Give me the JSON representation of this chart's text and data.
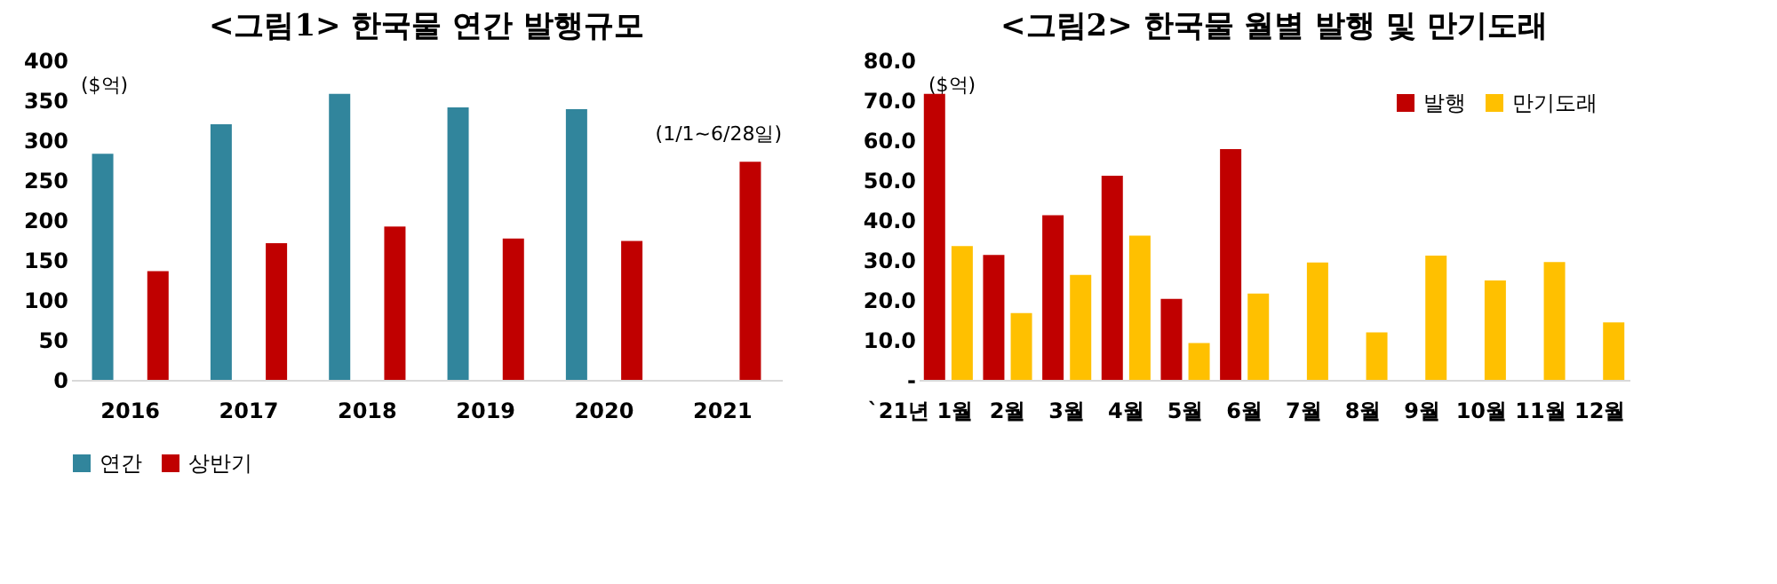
{
  "chart_data": [
    {
      "type": "bar",
      "title": "<그림1> 한국물 연간 발행규모",
      "ylabel": "($억)",
      "categories": [
        "2016",
        "2017",
        "2018",
        "2019",
        "2020",
        "2021"
      ],
      "series": [
        {
          "name": "연간",
          "color": "#31859c",
          "values": [
            283,
            320,
            358,
            341,
            339,
            null
          ]
        },
        {
          "name": "상반기",
          "color": "#c00000",
          "values": [
            136,
            171,
            192,
            177,
            174,
            273
          ]
        }
      ],
      "ylim": [
        0,
        400
      ],
      "yticks": [
        0,
        50,
        100,
        150,
        200,
        250,
        300,
        350,
        400
      ],
      "legend": "bottom",
      "annotations": [
        "(1/1~6/28일)"
      ]
    },
    {
      "type": "bar",
      "title": "<그림2>  한국물 월별 발행 및 만기도래",
      "ylabel": "($억)",
      "categories": [
        "`21년 1월",
        "2월",
        "3월",
        "4월",
        "5월",
        "6월",
        "7월",
        "8월",
        "9월",
        "10월",
        "11월",
        "12월"
      ],
      "series": [
        {
          "name": "발행",
          "color": "#c00000",
          "values": [
            71.6,
            31.3,
            41.2,
            51.1,
            20.3,
            57.8,
            null,
            null,
            null,
            null,
            null,
            null
          ]
        },
        {
          "name": "만기도래",
          "color": "#ffc000",
          "values": [
            33.5,
            16.7,
            26.3,
            36.1,
            9.2,
            21.6,
            29.4,
            11.9,
            31.1,
            24.9,
            29.5,
            14.4
          ]
        }
      ],
      "ylim": [
        0,
        80
      ],
      "yticks": [
        {
          "value": 0,
          "label": "-"
        },
        {
          "value": 10,
          "label": "10.0"
        },
        {
          "value": 20,
          "label": "20.0"
        },
        {
          "value": 30,
          "label": "30.0"
        },
        {
          "value": 40,
          "label": "40.0"
        },
        {
          "value": 50,
          "label": "50.0"
        },
        {
          "value": 60,
          "label": "60.0"
        },
        {
          "value": 70,
          "label": "70.0"
        },
        {
          "value": 80,
          "label": "80.0"
        }
      ],
      "legend": "top right"
    }
  ]
}
